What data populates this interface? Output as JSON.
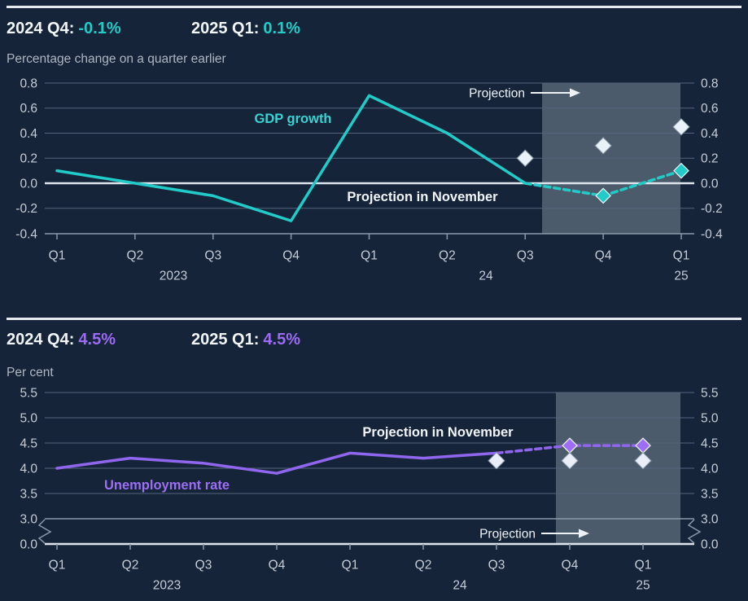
{
  "colors": {
    "background": "#152438",
    "separator": "#e6ebf0",
    "gridline": "#53657c",
    "axis": "#8a98a9",
    "bright_line": "#dde4eb",
    "tick_text": "#c6cdd7",
    "shade": "rgba(220,232,245,0.28)",
    "white_marker": "#e9f2f8",
    "white_marker_stroke": "#8494a6",
    "colored_marker_stroke": "#edf5f8",
    "annotation_text": "#f2f5f8"
  },
  "charts": [
    {
      "key": "gdp-growth",
      "header": [
        {
          "label": "2024 Q4:",
          "value": "-0.1%"
        },
        {
          "label": "2025 Q1:",
          "value": "0.1%"
        }
      ],
      "subtitle": "Percentage change on a quarter earlier",
      "accent_color": "#22cbc8",
      "chart_data": {
        "type": "line",
        "title": "",
        "ylabel": "Percentage change on a quarter earlier",
        "x_categories": [
          "Q1",
          "Q2",
          "Q3",
          "Q4",
          "Q1",
          "Q2",
          "Q3",
          "Q4",
          "Q1"
        ],
        "year_labels": [
          "2023",
          "24",
          "25"
        ],
        "yticks": [
          "0.8",
          "0.6",
          "0.4",
          "0.2",
          "0.0",
          "-0.2",
          "-0.4"
        ],
        "ylim": [
          -0.4,
          0.8
        ],
        "projection_shade": true,
        "series": [
          {
            "name": "GDP growth",
            "style": "line",
            "color": "#22cbc8",
            "start": 0,
            "values": [
              0.1,
              0.0,
              -0.1,
              -0.3,
              0.7,
              0.4,
              0.0
            ]
          },
          {
            "name": "GDP growth projection",
            "style": "dashed",
            "color": "#22cbc8",
            "start": 6,
            "values": [
              0.0,
              -0.1,
              0.1
            ],
            "marker_fill": "#22cbc8",
            "markers": [
              {
                "i": 7,
                "v": -0.1
              },
              {
                "i": 8,
                "v": 0.1
              }
            ]
          },
          {
            "name": "Projection in November",
            "style": "markers",
            "marker_fill": "#e9f2f8",
            "start": 6,
            "markers": [
              {
                "i": 6,
                "v": 0.2
              },
              {
                "i": 7,
                "v": 0.3
              },
              {
                "i": 8,
                "v": 0.45
              }
            ]
          }
        ],
        "annotations": [
          {
            "id": "series-label",
            "text": "GDP growth",
            "color": "#3ad2d2",
            "bold": true
          },
          {
            "id": "projection-arrow",
            "text": "Projection",
            "color": "#eef2f6",
            "bold": false
          },
          {
            "id": "november-label",
            "text": "Projection in November",
            "color": "#f2f5f8",
            "bold": true
          }
        ]
      }
    },
    {
      "key": "unemployment-rate",
      "header": [
        {
          "label": "2024 Q4:",
          "value": "4.5%"
        },
        {
          "label": "2025 Q1:",
          "value": "4.5%"
        }
      ],
      "subtitle": "Per cent",
      "accent_color": "#9c6bf6",
      "chart_data": {
        "type": "line",
        "title": "",
        "ylabel": "Per cent",
        "x_categories": [
          "Q1",
          "Q2",
          "Q3",
          "Q4",
          "Q1",
          "Q2",
          "Q3",
          "Q4",
          "Q1"
        ],
        "year_labels": [
          "2023",
          "24",
          "25"
        ],
        "yticks": [
          "5.5",
          "5.0",
          "4.5",
          "4.0",
          "3.5",
          "3.0"
        ],
        "ylim": [
          3.0,
          5.5
        ],
        "axis_break": {
          "upper_label": "3.0",
          "lower_label": "0.0"
        },
        "projection_shade": true,
        "series": [
          {
            "name": "Unemployment rate",
            "style": "line",
            "color": "#9166ee",
            "start": 0,
            "values": [
              4.0,
              4.2,
              4.1,
              3.9,
              4.3,
              4.2,
              4.3
            ]
          },
          {
            "name": "Unemployment rate projection",
            "style": "dashed",
            "color": "#9166ee",
            "start": 6,
            "values": [
              4.3,
              4.45,
              4.45
            ],
            "marker_fill": "#9e6ff6",
            "markers": [
              {
                "i": 7,
                "v": 4.45
              },
              {
                "i": 8,
                "v": 4.45
              }
            ]
          },
          {
            "name": "Projection in November",
            "style": "markers",
            "marker_fill": "#e9eef8",
            "start": 6,
            "markers": [
              {
                "i": 6,
                "v": 4.15
              },
              {
                "i": 7,
                "v": 4.15
              },
              {
                "i": 8,
                "v": 4.15
              }
            ]
          }
        ],
        "annotations": [
          {
            "id": "november-label",
            "text": "Projection in November",
            "color": "#f2f5f8",
            "bold": true
          },
          {
            "id": "series-label",
            "text": "Unemployment rate",
            "color": "#9d6ff5",
            "bold": true
          },
          {
            "id": "projection-arrow",
            "text": "Projection",
            "color": "#eef2f6",
            "bold": false
          }
        ]
      }
    }
  ]
}
